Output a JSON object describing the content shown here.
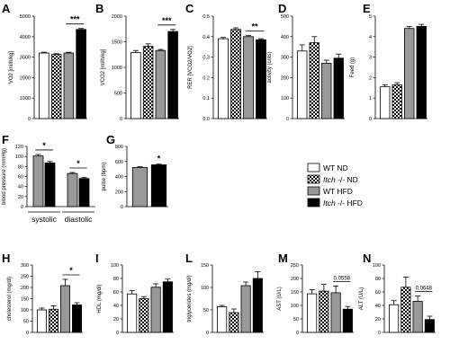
{
  "colors": {
    "wt_nd": "#ffffff",
    "itch_nd": "checkerboard",
    "wt_hfd": "#999999",
    "itch_hfd": "#000000"
  },
  "legend": [
    {
      "key": "wt_nd",
      "prefix": "WT",
      "italic": "",
      "suffix": " ND"
    },
    {
      "key": "itch_nd",
      "prefix": "",
      "italic": "Itch",
      "suffix": " -/- ND"
    },
    {
      "key": "wt_hfd",
      "prefix": "WT",
      "italic": "",
      "suffix": " HFD"
    },
    {
      "key": "itch_hfd",
      "prefix": "",
      "italic": "Itch",
      "suffix": " -/- HFD"
    }
  ],
  "chart_data": [
    {
      "letter": "A",
      "type": "bar",
      "ylabel": "VO2 [ml/h/kg]",
      "ylim": [
        0,
        5000
      ],
      "ticks": [
        0,
        1000,
        2000,
        3000,
        4000,
        5000
      ],
      "groups": [
        "wt_nd",
        "itch_nd",
        "wt_hfd",
        "itch_hfd"
      ],
      "values": [
        3200,
        3130,
        3200,
        4350
      ],
      "errors": [
        40,
        40,
        40,
        50
      ],
      "sig": [
        {
          "from": 2,
          "to": 3,
          "label": "***"
        }
      ]
    },
    {
      "letter": "B",
      "type": "bar",
      "ylabel": "VCO2 [ml/h/kg]",
      "ylim": [
        0,
        2000
      ],
      "ticks": [
        0,
        500,
        1000,
        1500,
        2000
      ],
      "groups": [
        "wt_nd",
        "itch_nd",
        "wt_hfd",
        "itch_hfd"
      ],
      "values": [
        1290,
        1410,
        1330,
        1700
      ],
      "errors": [
        40,
        50,
        20,
        40
      ],
      "sig": [
        {
          "from": 2,
          "to": 3,
          "label": "***"
        }
      ]
    },
    {
      "letter": "C",
      "type": "bar",
      "ylabel": "RER [VCO2/VO2]",
      "ylim": [
        0,
        0.5
      ],
      "ticks": [
        0.0,
        0.1,
        0.2,
        0.3,
        0.4,
        0.5
      ],
      "groups": [
        "wt_nd",
        "itch_nd",
        "wt_hfd",
        "itch_hfd"
      ],
      "values": [
        0.39,
        0.435,
        0.4,
        0.385
      ],
      "errors": [
        0.006,
        0.008,
        0.005,
        0.005
      ],
      "sig": [
        {
          "from": 2,
          "to": 3,
          "label": "**"
        }
      ]
    },
    {
      "letter": "D",
      "type": "bar",
      "ylabel": "activity (cnts)",
      "ylim": [
        0,
        500
      ],
      "ticks": [
        0,
        100,
        200,
        300,
        400,
        500
      ],
      "groups": [
        "wt_nd",
        "itch_nd",
        "wt_hfd",
        "itch_hfd"
      ],
      "values": [
        330,
        370,
        270,
        295
      ],
      "errors": [
        30,
        30,
        15,
        20
      ],
      "sig": []
    },
    {
      "letter": "E",
      "type": "bar",
      "ylabel": "Feed (g)",
      "ylim": [
        0,
        5
      ],
      "ticks": [
        0,
        1,
        2,
        3,
        4,
        5
      ],
      "groups": [
        "wt_nd",
        "itch_nd",
        "wt_hfd",
        "itch_hfd"
      ],
      "values": [
        1.55,
        1.65,
        4.4,
        4.5
      ],
      "errors": [
        0.1,
        0.1,
        0.1,
        0.1
      ],
      "sig": []
    },
    {
      "letter": "F",
      "type": "bar",
      "ylabel": "blood pressure (mmHg)",
      "ylim": [
        0,
        120
      ],
      "ticks": [
        0,
        20,
        40,
        60,
        80,
        100,
        120
      ],
      "categories": [
        "systolic",
        "diastolic"
      ],
      "bars": [
        {
          "cat": 0,
          "group": "wt_hfd",
          "value": 101,
          "error": 3
        },
        {
          "cat": 0,
          "group": "itch_hfd",
          "value": 87,
          "error": 3
        },
        {
          "cat": 1,
          "group": "wt_hfd",
          "value": 66,
          "error": 2
        },
        {
          "cat": 1,
          "group": "itch_hfd",
          "value": 56,
          "error": 2
        }
      ],
      "sig": [
        {
          "from": 0,
          "to": 1,
          "label": "*"
        },
        {
          "from": 2,
          "to": 3,
          "label": "*"
        }
      ]
    },
    {
      "letter": "G",
      "type": "bar",
      "ylabel": "pulse (bpm)",
      "ylim": [
        0,
        800
      ],
      "ticks": [
        0,
        200,
        400,
        600,
        800
      ],
      "groups": [
        "wt_hfd",
        "itch_hfd"
      ],
      "values": [
        520,
        555
      ],
      "errors": [
        10,
        10
      ],
      "sig": [
        {
          "bar": 1,
          "label": "*"
        }
      ]
    },
    {
      "letter": "H",
      "type": "bar",
      "ylabel": "cholesterol (mg/dl)",
      "ylim": [
        0,
        300
      ],
      "ticks": [
        0,
        50,
        100,
        150,
        200,
        250,
        300
      ],
      "groups": [
        "wt_nd",
        "itch_nd",
        "wt_hfd",
        "itch_hfd"
      ],
      "values": [
        100,
        103,
        208,
        122
      ],
      "errors": [
        8,
        15,
        28,
        10
      ],
      "sig": [
        {
          "from": 2,
          "to": 3,
          "label": "*"
        }
      ]
    },
    {
      "letter": "I",
      "type": "bar",
      "ylabel": "HDL (mg/dl)",
      "ylim": [
        0,
        100
      ],
      "ticks": [
        0,
        20,
        40,
        60,
        80,
        100
      ],
      "groups": [
        "wt_nd",
        "itch_nd",
        "wt_hfd",
        "itch_hfd"
      ],
      "values": [
        57,
        50,
        67,
        75
      ],
      "errors": [
        5,
        3,
        5,
        4
      ],
      "sig": []
    },
    {
      "letter": "L",
      "type": "bar",
      "ylabel": "triglycerides (mg/dl)",
      "ylim": [
        0,
        150
      ],
      "ticks": [
        0,
        50,
        100,
        150
      ],
      "groups": [
        "wt_nd",
        "itch_nd",
        "wt_hfd",
        "itch_hfd"
      ],
      "values": [
        57,
        44,
        104,
        120
      ],
      "errors": [
        3,
        8,
        8,
        15
      ],
      "sig": []
    },
    {
      "letter": "M",
      "type": "bar",
      "ylabel": "AST (U/L)",
      "ylim": [
        0,
        250
      ],
      "ticks": [
        0,
        50,
        100,
        150,
        200,
        250
      ],
      "groups": [
        "wt_nd",
        "itch_nd",
        "wt_hfd",
        "itch_hfd"
      ],
      "values": [
        143,
        153,
        147,
        86
      ],
      "errors": [
        15,
        25,
        25,
        10
      ],
      "sig": [
        {
          "from": 2,
          "to": 3,
          "label": "0.0558"
        }
      ]
    },
    {
      "letter": "N",
      "type": "bar",
      "ylabel": "ALT (U/L)",
      "ylim": [
        0,
        100
      ],
      "ticks": [
        0,
        20,
        40,
        60,
        80,
        100
      ],
      "groups": [
        "wt_nd",
        "itch_nd",
        "wt_hfd",
        "itch_hfd"
      ],
      "values": [
        41,
        67,
        46,
        19
      ],
      "errors": [
        6,
        15,
        8,
        5
      ],
      "sig": [
        {
          "from": 2,
          "to": 3,
          "label": "0.0648"
        }
      ]
    }
  ]
}
